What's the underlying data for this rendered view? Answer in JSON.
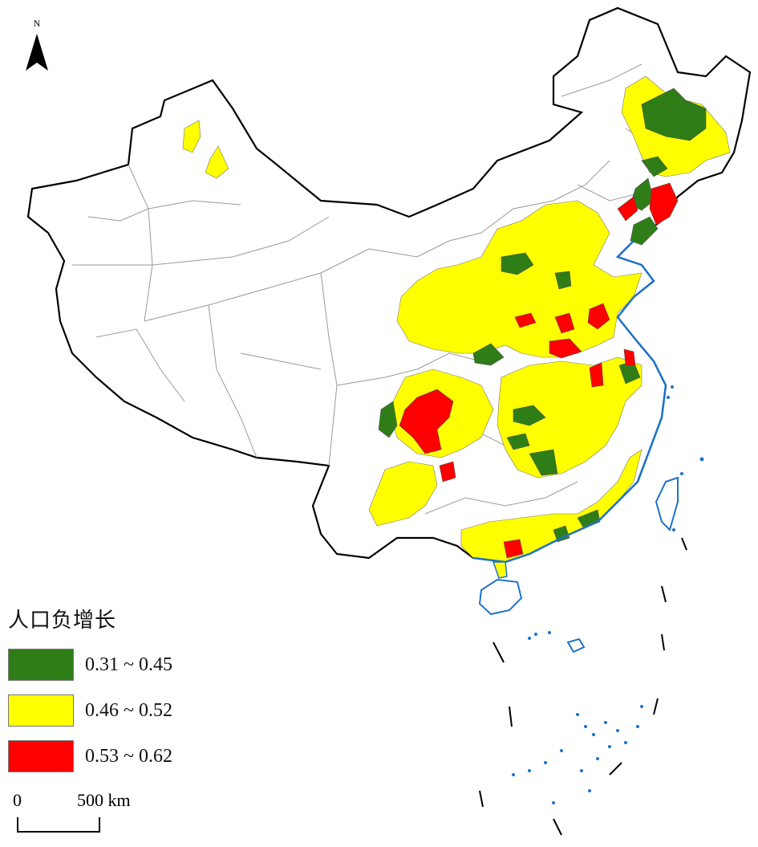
{
  "north_arrow": {
    "label": "N"
  },
  "legend": {
    "title": "人口负增长",
    "items": [
      {
        "label": "0.31 ~ 0.45",
        "color": "#2e7d16"
      },
      {
        "label": "0.46 ~ 0.52",
        "color": "#ffff00"
      },
      {
        "label": "0.53 ~ 0.62",
        "color": "#ff0000"
      }
    ]
  },
  "scale_bar": {
    "zero": "0",
    "distance": "500 km"
  },
  "colors": {
    "border": "#000000",
    "province_lines": "#9a9a9a",
    "coast": "#1e73c8"
  }
}
